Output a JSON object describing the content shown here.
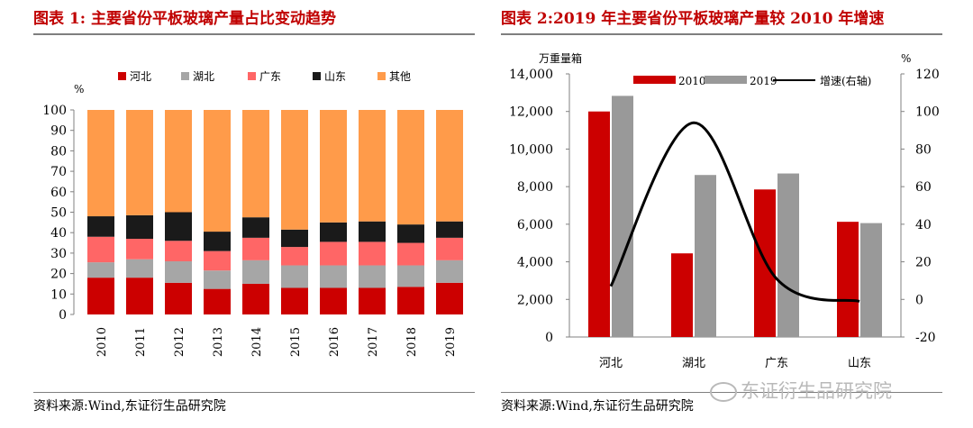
{
  "left_panel": {
    "title": "图表 1:   主要省份平板玻璃产量占比变动趋势",
    "source": "资料来源:Wind,东证衍生品研究院"
  },
  "right_panel": {
    "title": "图表 2:2019 年主要省份平板玻璃产量较 2010 年增速",
    "source": "资料来源:Wind,东证衍生品研究院"
  },
  "watermark": "东证衍生品研究院",
  "chart_data": [
    {
      "type": "bar",
      "stacked": true,
      "title": "",
      "ylabel": "%",
      "ylim": [
        0,
        100
      ],
      "yticks": [
        0,
        10,
        20,
        30,
        40,
        50,
        60,
        70,
        80,
        90,
        100
      ],
      "legend_position": "top",
      "categories": [
        "2010",
        "2011",
        "2012",
        "2013",
        "2014",
        "2015",
        "2016",
        "2017",
        "2018",
        "2019"
      ],
      "series": [
        {
          "name": "河北",
          "color": "#cc0000",
          "values": [
            18,
            18,
            15.5,
            12.5,
            15,
            13,
            13,
            13,
            13.5,
            15.5
          ]
        },
        {
          "name": "湖北",
          "color": "#a6a6a6",
          "values": [
            7.5,
            9,
            10.5,
            9,
            11.5,
            11,
            11,
            11,
            10.5,
            11
          ]
        },
        {
          "name": "广东",
          "color": "#ff6666",
          "values": [
            12.5,
            10,
            10,
            9.5,
            11,
            9,
            11.5,
            11.5,
            11,
            11
          ]
        },
        {
          "name": "山东",
          "color": "#1a1a1a",
          "values": [
            10,
            11.5,
            14,
            9.5,
            10,
            8.5,
            9.5,
            10,
            9,
            8
          ]
        },
        {
          "name": "其他",
          "color": "#ff9b4a",
          "values": [
            52,
            51.5,
            50,
            59.5,
            52.5,
            58.5,
            55,
            54.5,
            56,
            54.5
          ]
        }
      ]
    },
    {
      "type": "bar",
      "title": "",
      "ylabel": "万重量箱",
      "y2label": "%",
      "ylim": [
        0,
        14000
      ],
      "y2lim": [
        -20,
        120
      ],
      "yticks": [
        "0",
        "2,000",
        "4,000",
        "6,000",
        "8,000",
        "10,000",
        "12,000",
        "14,000"
      ],
      "y2ticks": [
        "-20",
        "0",
        "20",
        "40",
        "60",
        "80",
        "100",
        "120"
      ],
      "legend_position": "top",
      "categories": [
        "河北",
        "湖北",
        "广东",
        "山东"
      ],
      "series": [
        {
          "name": "2010",
          "type": "bar",
          "color": "#cc0000",
          "values": [
            12000,
            4450,
            7850,
            6130
          ]
        },
        {
          "name": "2019",
          "type": "bar",
          "color": "#999999",
          "values": [
            12830,
            8620,
            8700,
            6060
          ]
        },
        {
          "name": "增速(右轴)",
          "type": "line",
          "axis": "right",
          "color": "#000000",
          "values": [
            7,
            94,
            11,
            -1
          ]
        }
      ]
    }
  ]
}
